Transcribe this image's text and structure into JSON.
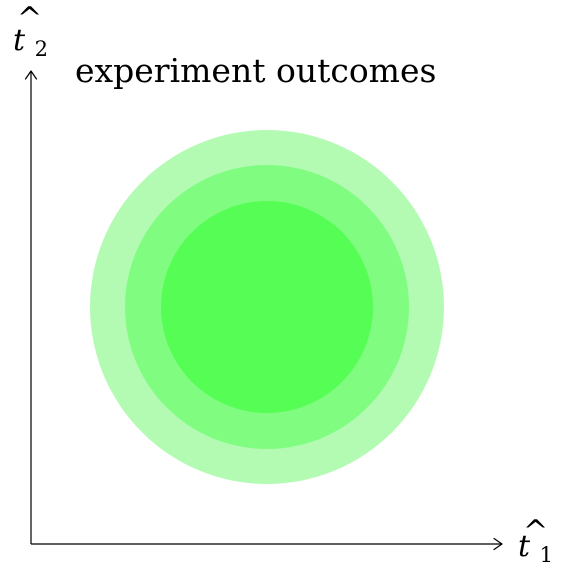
{
  "caption": "experiment outcomes",
  "axes": {
    "x": {
      "symbol": "t",
      "accent": "^",
      "subscript": "1"
    },
    "y": {
      "symbol": "t",
      "accent": "^",
      "subscript": "2"
    }
  },
  "regions": [
    {
      "level": "outer",
      "color": "#b3fbb3"
    },
    {
      "level": "middle",
      "color": "#80fd80"
    },
    {
      "level": "inner",
      "color": "#55fd55"
    }
  ],
  "colors": {
    "axis": "#000000",
    "background": "#ffffff"
  }
}
